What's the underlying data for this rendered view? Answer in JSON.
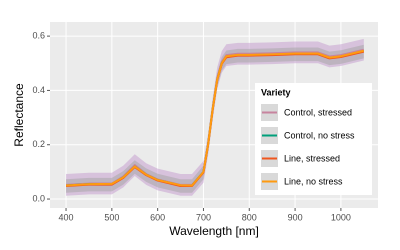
{
  "chart_data": {
    "type": "line",
    "x_label": "Wavelength [nm]",
    "y_label": "Reflectance",
    "legend_title": "Variety",
    "legend_position": "right",
    "x": [
      400,
      450,
      500,
      525,
      550,
      575,
      600,
      650,
      675,
      700,
      710,
      720,
      730,
      740,
      750,
      775,
      800,
      850,
      900,
      950,
      975,
      1000,
      1050
    ],
    "xlim": [
      365,
      1081
    ],
    "xticks": [
      400,
      500,
      600,
      700,
      800,
      900,
      1000
    ],
    "ylim": [
      -0.033,
      0.652
    ],
    "yticks": [
      {
        "value": 0,
        "label": "0.0"
      },
      0.2,
      0.4,
      0.6
    ],
    "grid": true,
    "series": [
      {
        "name": "Control, stressed",
        "color": "#c7849e",
        "values": [
          0.052,
          0.057,
          0.057,
          0.083,
          0.125,
          0.092,
          0.072,
          0.052,
          0.052,
          0.1,
          0.2,
          0.33,
          0.445,
          0.505,
          0.53,
          0.535,
          0.535,
          0.537,
          0.54,
          0.54,
          0.525,
          0.53,
          0.55
        ],
        "ribbon_color": "#c7a0d0",
        "lower": [
          0.012,
          0.017,
          0.017,
          0.043,
          0.085,
          0.052,
          0.032,
          0.012,
          0.012,
          0.06,
          0.16,
          0.29,
          0.405,
          0.465,
          0.49,
          0.495,
          0.495,
          0.497,
          0.5,
          0.5,
          0.485,
          0.49,
          0.51
        ],
        "upper": [
          0.092,
          0.097,
          0.097,
          0.123,
          0.165,
          0.132,
          0.112,
          0.092,
          0.092,
          0.14,
          0.24,
          0.37,
          0.485,
          0.545,
          0.57,
          0.575,
          0.575,
          0.577,
          0.58,
          0.58,
          0.565,
          0.57,
          0.59
        ]
      },
      {
        "name": "Control, no stress",
        "color": "#00a07a",
        "values": [
          0.05,
          0.055,
          0.055,
          0.08,
          0.12,
          0.09,
          0.07,
          0.05,
          0.05,
          0.1,
          0.2,
          0.33,
          0.44,
          0.5,
          0.525,
          0.53,
          0.53,
          0.532,
          0.535,
          0.535,
          0.52,
          0.525,
          0.545
        ]
      },
      {
        "name": "Line, stressed",
        "color": "#f0561e",
        "values": [
          0.048,
          0.053,
          0.053,
          0.078,
          0.118,
          0.088,
          0.068,
          0.048,
          0.048,
          0.098,
          0.198,
          0.328,
          0.438,
          0.498,
          0.522,
          0.528,
          0.528,
          0.53,
          0.533,
          0.533,
          0.518,
          0.523,
          0.543
        ],
        "ribbon_color": "#a8a8a8",
        "lower": [
          0.023,
          0.028,
          0.028,
          0.053,
          0.093,
          0.063,
          0.043,
          0.023,
          0.023,
          0.073,
          0.173,
          0.303,
          0.413,
          0.473,
          0.497,
          0.503,
          0.503,
          0.505,
          0.508,
          0.508,
          0.493,
          0.498,
          0.518
        ],
        "upper": [
          0.073,
          0.078,
          0.078,
          0.103,
          0.143,
          0.113,
          0.093,
          0.073,
          0.073,
          0.123,
          0.223,
          0.353,
          0.463,
          0.523,
          0.547,
          0.553,
          0.553,
          0.555,
          0.558,
          0.558,
          0.543,
          0.548,
          0.568
        ]
      },
      {
        "name": "Line, no stress",
        "color": "#ff9a10",
        "values": [
          0.05,
          0.055,
          0.056,
          0.08,
          0.12,
          0.09,
          0.07,
          0.051,
          0.05,
          0.1,
          0.2,
          0.33,
          0.44,
          0.5,
          0.526,
          0.531,
          0.531,
          0.533,
          0.536,
          0.536,
          0.521,
          0.526,
          0.546
        ]
      }
    ]
  }
}
